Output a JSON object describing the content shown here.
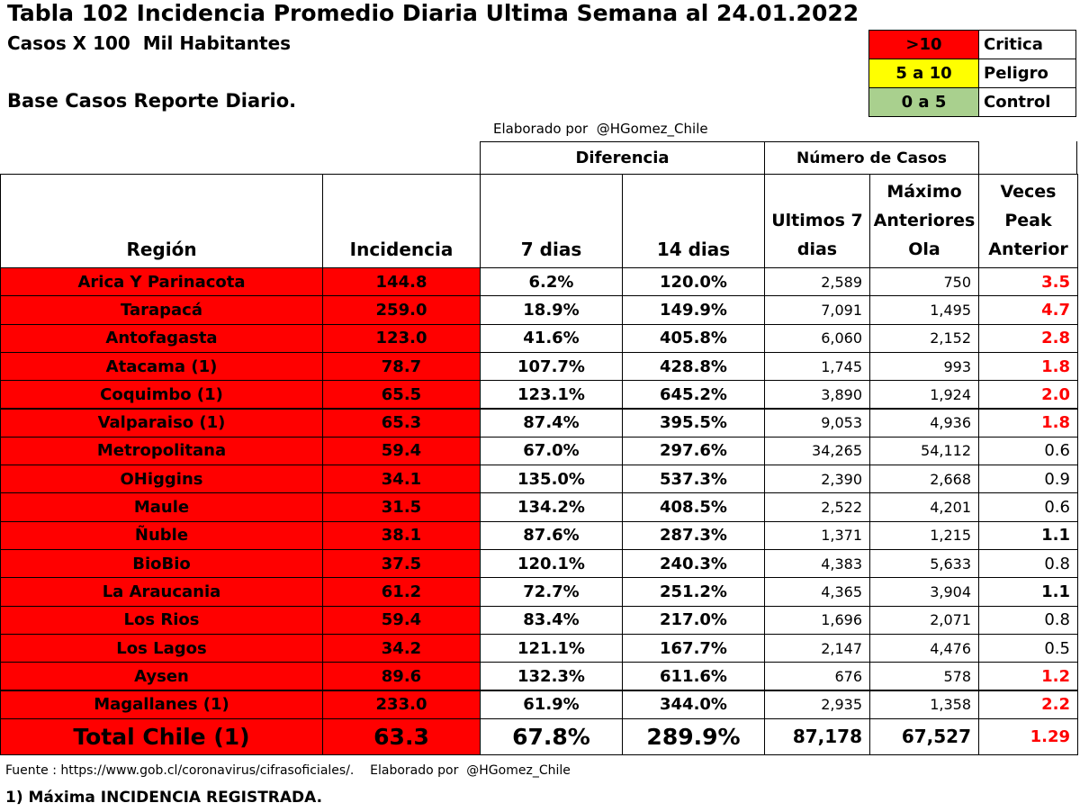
{
  "header": {
    "title": "Tabla 102 Incidencia Promedio Diaria Ultima Semana al 24.01.2022",
    "subtitle": "Casos X 100  Mil Habitantes",
    "base": "Base Casos Reporte Diario.",
    "credit": "Elaborado por  @HGomez_Chile"
  },
  "legend": [
    [
      ">10",
      "Critica"
    ],
    [
      "5 a 10",
      "Peligro"
    ],
    [
      "0 a 5",
      "Control"
    ]
  ],
  "table": {
    "groups": [
      "Diferencia",
      "Número de Casos"
    ],
    "columns": [
      "Región",
      "Incidencia",
      "7 dias",
      "14 dias",
      "Ultimos 7 dias",
      "Máximo Anteriores Ola",
      "Veces Peak Anterior"
    ],
    "rows": [
      [
        "Arica Y Parinacota",
        "144.8",
        "6.2%",
        "120.0%",
        "2,589",
        "750",
        "3.5"
      ],
      [
        "Tarapacá",
        "259.0",
        "18.9%",
        "149.9%",
        "7,091",
        "1,495",
        "4.7"
      ],
      [
        "Antofagasta",
        "123.0",
        "41.6%",
        "405.8%",
        "6,060",
        "2,152",
        "2.8"
      ],
      [
        "Atacama (1)",
        "78.7",
        "107.7%",
        "428.8%",
        "1,745",
        "993",
        "1.8"
      ],
      [
        "Coquimbo (1)",
        "65.5",
        "123.1%",
        "645.2%",
        "3,890",
        "1,924",
        "2.0"
      ],
      [
        "Valparaiso (1)",
        "65.3",
        "87.4%",
        "395.5%",
        "9,053",
        "4,936",
        "1.8"
      ],
      [
        "Metropolitana",
        "59.4",
        "67.0%",
        "297.6%",
        "34,265",
        "54,112",
        "0.6"
      ],
      [
        "OHiggins",
        "34.1",
        "135.0%",
        "537.3%",
        "2,390",
        "2,668",
        "0.9"
      ],
      [
        "Maule",
        "31.5",
        "134.2%",
        "408.5%",
        "2,522",
        "4,201",
        "0.6"
      ],
      [
        "Ñuble",
        "38.1",
        "87.6%",
        "287.3%",
        "1,371",
        "1,215",
        "1.1"
      ],
      [
        "BioBio",
        "37.5",
        "120.1%",
        "240.3%",
        "4,383",
        "5,633",
        "0.8"
      ],
      [
        "La Araucania",
        "61.2",
        "72.7%",
        "251.2%",
        "4,365",
        "3,904",
        "1.1"
      ],
      [
        "Los Rios",
        "59.4",
        "83.4%",
        "217.0%",
        "1,696",
        "2,071",
        "0.8"
      ],
      [
        "Los Lagos",
        "34.2",
        "121.1%",
        "167.7%",
        "2,147",
        "4,476",
        "0.5"
      ],
      [
        "Aysen",
        "89.6",
        "132.3%",
        "611.6%",
        "676",
        "578",
        "1.2"
      ],
      [
        "Magallanes (1)",
        "233.0",
        "61.9%",
        "344.0%",
        "2,935",
        "1,358",
        "2.2"
      ]
    ],
    "total": [
      "Total Chile (1)",
      "63.3",
      "67.8%",
      "289.9%",
      "87,178",
      "67,527",
      "1.29"
    ]
  },
  "footer": {
    "source": "Fuente : https://www.gob.cl/coronavirus/cifrasoficiales/.    Elaborado por  @HGomez_Chile",
    "note": "1) Máxima INCIDENCIA REGISTRADA."
  }
}
